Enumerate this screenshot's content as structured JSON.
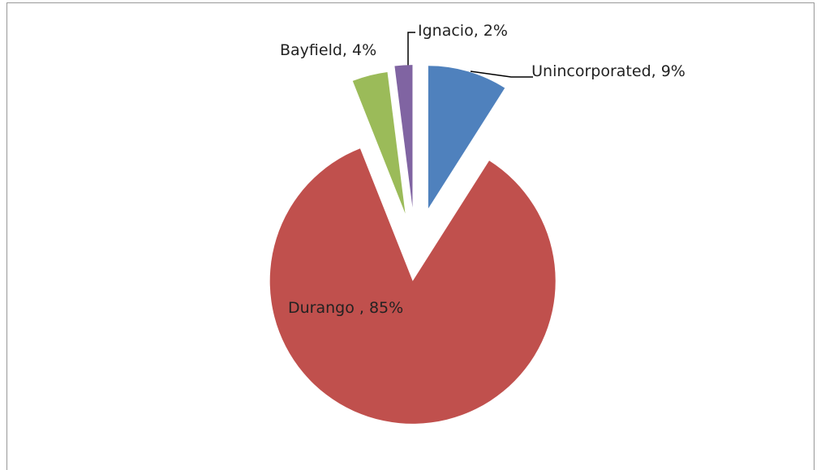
{
  "chart_data": {
    "type": "pie",
    "values": [
      9,
      85,
      4,
      2
    ],
    "value_labels": [
      "Unincorporated, 9%",
      "Durango , 85%",
      "Bayfield, 4%",
      "Ignacio, 2%"
    ],
    "colors": [
      "#4f81bd",
      "#c0504d",
      "#9bbb59",
      "#8064a2"
    ]
  }
}
